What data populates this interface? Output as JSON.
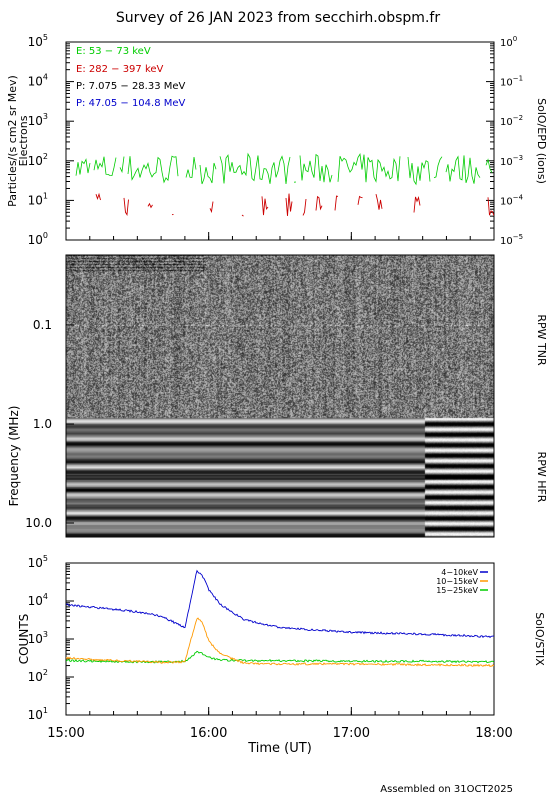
{
  "title": "Survey of 26 JAN 2023 from secchirh.obspm.fr",
  "footer": "Assembled on 31OCT2025",
  "xlabel": "Time (UT)",
  "x_ticks": [
    "15:00",
    "16:00",
    "17:00",
    "18:00"
  ],
  "panels": {
    "epd": {
      "ylabel_left": "Particles/(s cm2 sr Mev)",
      "ylabel_left_sub": "Electrons",
      "ylabel_right": "SolO/EPD (ions)",
      "left_ticks": [
        {
          "base": "10",
          "exp": "0"
        },
        {
          "base": "10",
          "exp": "1"
        },
        {
          "base": "10",
          "exp": "2"
        },
        {
          "base": "10",
          "exp": "3"
        },
        {
          "base": "10",
          "exp": "4"
        },
        {
          "base": "10",
          "exp": "5"
        }
      ],
      "right_ticks": [
        {
          "base": "10",
          "exp": "−5"
        },
        {
          "base": "10",
          "exp": "−4"
        },
        {
          "base": "10",
          "exp": "−3"
        },
        {
          "base": "10",
          "exp": "−2"
        },
        {
          "base": "10",
          "exp": "−1"
        },
        {
          "base": "10",
          "exp": "0"
        }
      ],
      "legend": [
        {
          "label": "E: 53 − 73 keV",
          "color": "#00cc00"
        },
        {
          "label": "E: 282 − 397 keV",
          "color": "#cc0000"
        },
        {
          "label": "P: 7.075 − 28.33 MeV",
          "color": "#000000"
        },
        {
          "label": "P: 47.05 − 104.8 MeV",
          "color": "#0000cc"
        }
      ]
    },
    "rpw": {
      "ylabel": "Frequency (MHz)",
      "tnr_label": "RPW TNR",
      "hfr_label": "RPW HFR",
      "ticks": [
        "0.1",
        "1.0",
        "10.0"
      ]
    },
    "stix": {
      "ylabel_left": "COUNTS",
      "ylabel_right": "SolO/STIX",
      "ticks": [
        {
          "base": "10",
          "exp": "1"
        },
        {
          "base": "10",
          "exp": "2"
        },
        {
          "base": "10",
          "exp": "3"
        },
        {
          "base": "10",
          "exp": "4"
        },
        {
          "base": "10",
          "exp": "5"
        }
      ],
      "legend": [
        {
          "label": "4−10keV",
          "color": "#0000cc"
        },
        {
          "label": "10−15keV",
          "color": "#ff9900"
        },
        {
          "label": "15−25keV",
          "color": "#00cc00"
        }
      ]
    }
  },
  "chart_data": [
    {
      "type": "line",
      "title": "Survey of 26 JAN 2023 from secchirh.obspm.fr",
      "xlabel": "Time (UT)",
      "ylabel": "Particles/(s cm2 sr Mev)",
      "y_scale": "log",
      "ylim": [
        1,
        100000
      ],
      "xlim": [
        "15:00",
        "18:00"
      ],
      "series": [
        {
          "name": "E: 53 − 73 keV",
          "color": "#00cc00",
          "typical_range": [
            25,
            150
          ]
        },
        {
          "name": "E: 282 − 397 keV",
          "color": "#cc0000",
          "typical_range": [
            4,
            15
          ],
          "note": "sporadic"
        }
      ]
    },
    {
      "type": "heatmap",
      "ylabel": "Frequency (MHz)",
      "y_scale": "log",
      "ylim": [
        0.02,
        16
      ],
      "xlim": [
        "15:00",
        "18:00"
      ],
      "sections": [
        "RPW TNR",
        "RPW HFR"
      ]
    },
    {
      "type": "line",
      "ylabel": "COUNTS",
      "y_scale": "log",
      "ylim": [
        10,
        100000
      ],
      "xlim": [
        "15:00",
        "18:00"
      ],
      "x": [
        "15:00",
        "15:15",
        "15:30",
        "15:40",
        "15:50",
        "15:55",
        "15:57",
        "16:00",
        "16:05",
        "16:15",
        "16:30",
        "17:00",
        "17:30",
        "18:00"
      ],
      "series": [
        {
          "name": "4−10keV",
          "color": "#0000cc",
          "values": [
            8000,
            6500,
            5200,
            4000,
            2000,
            60000,
            52000,
            20000,
            8000,
            3200,
            2000,
            1500,
            1350,
            1150
          ]
        },
        {
          "name": "10−15keV",
          "color": "#ff9900",
          "values": [
            320,
            280,
            260,
            240,
            250,
            3500,
            3000,
            900,
            400,
            230,
            220,
            220,
            210,
            200
          ]
        },
        {
          "name": "15−25keV",
          "color": "#00cc00",
          "values": [
            270,
            260,
            250,
            250,
            260,
            450,
            420,
            330,
            280,
            270,
            270,
            260,
            260,
            250
          ]
        }
      ]
    }
  ]
}
